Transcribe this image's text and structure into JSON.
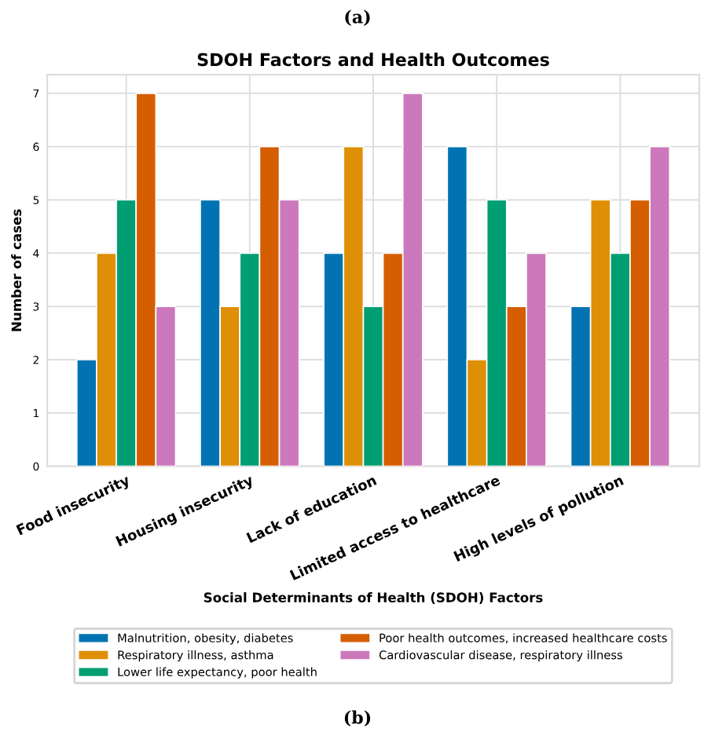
{
  "chart_data": {
    "type": "bar",
    "title": "SDOH Factors and Health Outcomes",
    "xlabel": "Social Determinants of Health (SDOH) Factors",
    "ylabel": "Number of cases",
    "categories": [
      "Food insecurity",
      "Housing insecurity",
      "Lack of education",
      "Limited access to healthcare",
      "High levels of pollution"
    ],
    "series": [
      {
        "name": "Malnutrition, obesity, diabetes",
        "color": "#0173b2",
        "values": [
          2,
          5,
          4,
          6,
          3
        ]
      },
      {
        "name": "Respiratory illness, asthma",
        "color": "#de8f05",
        "values": [
          4,
          3,
          6,
          2,
          5
        ]
      },
      {
        "name": "Lower life expectancy, poor health",
        "color": "#029e73",
        "values": [
          5,
          4,
          3,
          5,
          4
        ]
      },
      {
        "name": "Poor health outcomes, increased healthcare costs",
        "color": "#d55e00",
        "values": [
          7,
          6,
          4,
          3,
          5
        ]
      },
      {
        "name": "Cardiovascular disease, respiratory illness",
        "color": "#cc78bc",
        "values": [
          3,
          5,
          7,
          4,
          6
        ]
      }
    ],
    "ylim": [
      0,
      7.35
    ],
    "yticks": [
      0,
      1,
      2,
      3,
      4,
      5,
      6,
      7
    ],
    "grid": true,
    "legend": "bottom",
    "annotations": [
      "(a)",
      "(b)"
    ]
  }
}
